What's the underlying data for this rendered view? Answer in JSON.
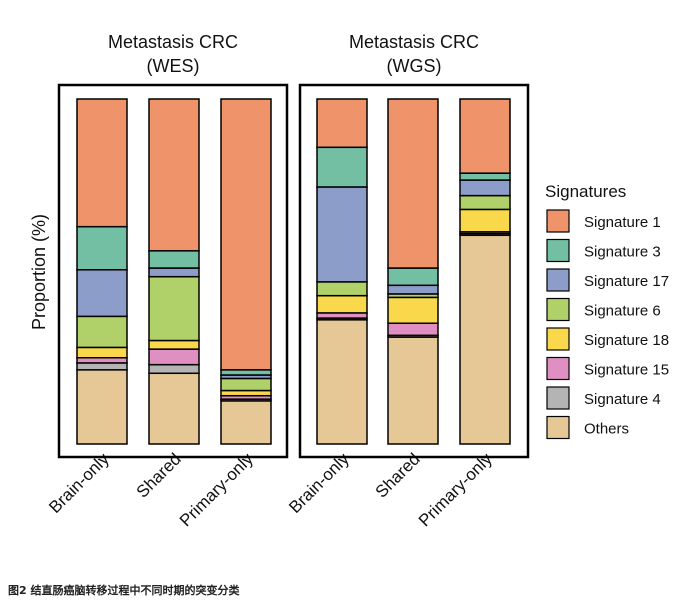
{
  "caption": "图2 结直肠癌脑转移过程中不同时期的突变分类",
  "chart_data": {
    "type": "bar",
    "stacked": true,
    "ylabel": "Proportion (%)",
    "ylim": [
      0,
      100
    ],
    "legend_title": "Signatures",
    "legend_position": "right",
    "series": [
      {
        "name": "Signature 1",
        "color": "#EF936B"
      },
      {
        "name": "Signature 3",
        "color": "#73BFA4"
      },
      {
        "name": "Signature 17",
        "color": "#8D9DCA"
      },
      {
        "name": "Signature 6",
        "color": "#B0D16A"
      },
      {
        "name": "Signature 18",
        "color": "#F9D84C"
      },
      {
        "name": "Signature 15",
        "color": "#E08FC2"
      },
      {
        "name": "Signature 4",
        "color": "#B4B4B4"
      },
      {
        "name": "Others",
        "color": "#E6C896"
      }
    ],
    "panels": [
      {
        "title_line1": "Metastasis CRC",
        "title_line2": "(WES)",
        "categories": [
          "Brain-only",
          "Shared",
          "Primary-only"
        ],
        "values": {
          "Others": [
            21.5,
            20.5,
            12.5
          ],
          "Signature 4": [
            2.0,
            2.5,
            0.5
          ],
          "Signature 15": [
            1.5,
            4.5,
            1.0
          ],
          "Signature 18": [
            3.0,
            2.5,
            1.5
          ],
          "Signature 6": [
            9.0,
            18.5,
            3.5
          ],
          "Signature 3": [
            12.5,
            5.0,
            1.5
          ],
          "Signature 17": [
            13.5,
            2.5,
            1.0
          ],
          "Signature 1": [
            37.0,
            44.0,
            78.5
          ]
        }
      },
      {
        "title_line1": "Metastasis CRC",
        "title_line2": "(WGS)",
        "categories": [
          "Brain-only",
          "Shared",
          "Primary-only"
        ],
        "values": {
          "Others": [
            36.0,
            31.0,
            60.5
          ],
          "Signature 4": [
            0.5,
            0.5,
            0.5
          ],
          "Signature 15": [
            1.5,
            3.5,
            0.5
          ],
          "Signature 18": [
            5.0,
            7.5,
            6.5
          ],
          "Signature 6": [
            4.0,
            1.0,
            4.0
          ],
          "Signature 17": [
            27.5,
            2.5,
            4.5
          ],
          "Signature 3": [
            11.5,
            5.0,
            2.0
          ],
          "Signature 1": [
            14.0,
            49.0,
            21.5
          ]
        }
      }
    ]
  }
}
